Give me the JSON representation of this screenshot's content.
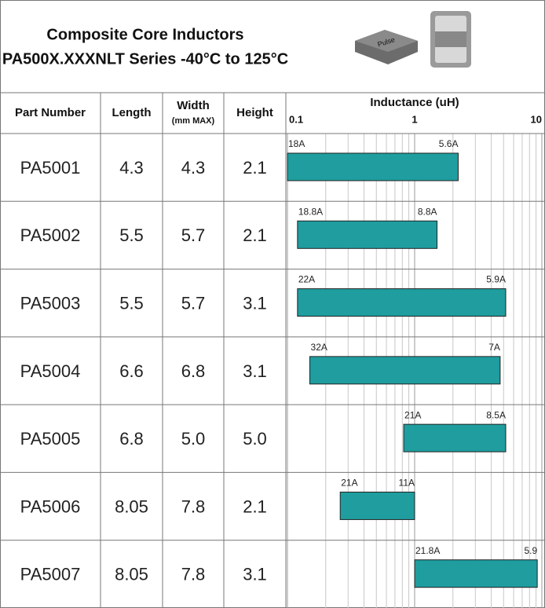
{
  "header": {
    "title_line1": "Composite Core Inductors",
    "title_line2": "PA500X.XXXNLT Series -40°C to 125°C",
    "logo": "Pulse"
  },
  "table": {
    "columns": [
      "Part Number",
      "Length",
      "Width",
      "Height"
    ],
    "width_unit": "(mm MAX)",
    "rows": [
      [
        "PA5001",
        "4.3",
        "4.3",
        "2.1"
      ],
      [
        "PA5002",
        "5.5",
        "5.7",
        "2.1"
      ],
      [
        "PA5003",
        "5.5",
        "5.7",
        "3.1"
      ],
      [
        "PA5004",
        "6.6",
        "6.8",
        "3.1"
      ],
      [
        "PA5005",
        "6.8",
        "5.0",
        "5.0"
      ],
      [
        "PA5006",
        "8.05",
        "7.8",
        "2.1"
      ],
      [
        "PA5007",
        "8.05",
        "7.8",
        "3.1"
      ]
    ]
  },
  "chart_data": {
    "type": "range-bar",
    "title": "Inductance (uH)",
    "xlim": [
      0.1,
      10
    ],
    "xticks": [
      0.1,
      1,
      10
    ],
    "log_scale": true,
    "grid": true,
    "color": "#1f9d9f",
    "bars": [
      {
        "low": 0.1,
        "high": 2.2,
        "low_label": "18A",
        "high_label": "5.6A"
      },
      {
        "low": 0.12,
        "high": 1.5,
        "low_label": "18.8A",
        "high_label": "8.8A"
      },
      {
        "low": 0.12,
        "high": 5.2,
        "low_label": "22A",
        "high_label": "5.9A"
      },
      {
        "low": 0.15,
        "high": 4.7,
        "low_label": "32A",
        "high_label": "7A"
      },
      {
        "low": 0.82,
        "high": 5.2,
        "low_label": "21A",
        "high_label": "8.5A"
      },
      {
        "low": 0.26,
        "high": 1.0,
        "low_label": "21A",
        "high_label": "11A"
      },
      {
        "low": 1.0,
        "high": 9.2,
        "low_label": "21.8A",
        "high_label": "5.9"
      }
    ]
  }
}
